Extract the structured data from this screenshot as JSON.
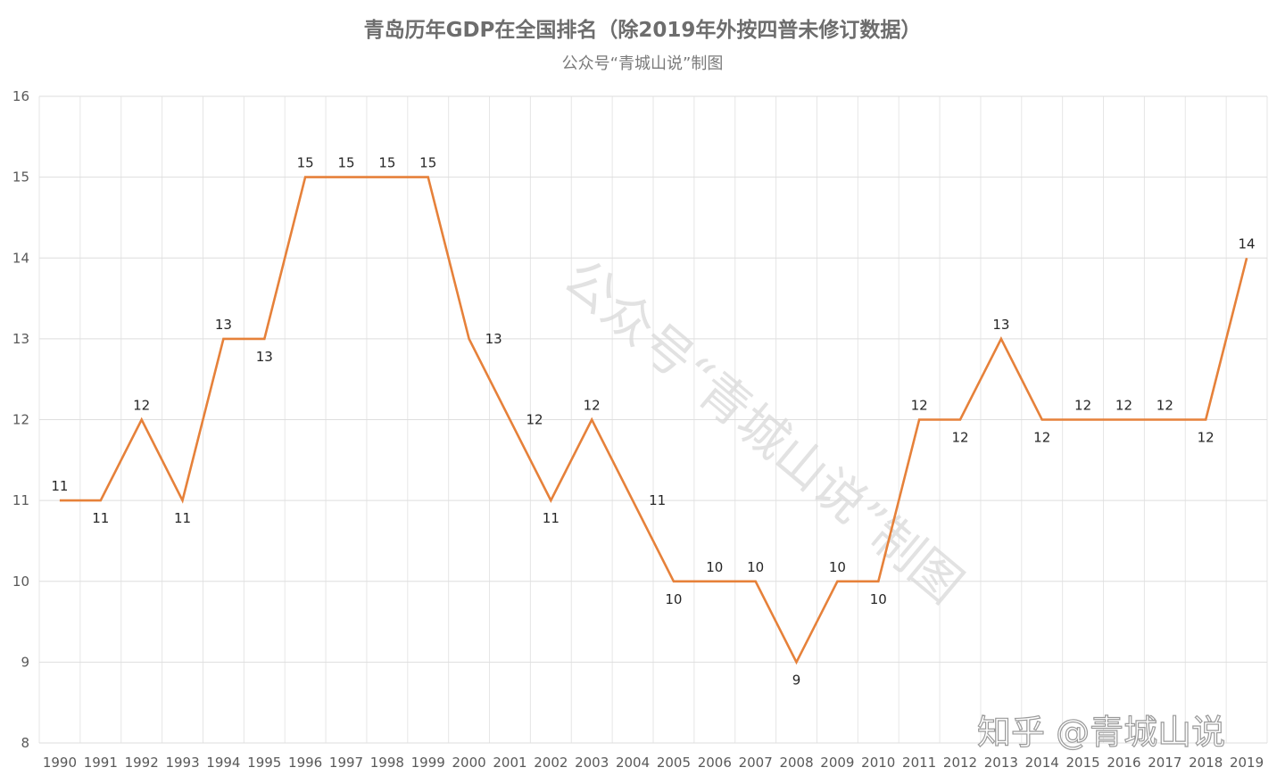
{
  "chart_data": {
    "type": "line",
    "title": "青岛历年GDP在全国排名（除2019年外按四普未修订数据）",
    "subtitle": "公众号“青城山说”制图",
    "categories": [
      "1990",
      "1991",
      "1992",
      "1993",
      "1994",
      "1995",
      "1996",
      "1997",
      "1998",
      "1999",
      "2000",
      "2001",
      "2002",
      "2003",
      "2004",
      "2005",
      "2006",
      "2007",
      "2008",
      "2009",
      "2010",
      "2011",
      "2012",
      "2013",
      "2014",
      "2015",
      "2016",
      "2017",
      "2018",
      "2019"
    ],
    "series": [
      {
        "values": [
          11,
          11,
          12,
          11,
          13,
          13,
          15,
          15,
          15,
          15,
          13,
          null,
          11,
          12,
          null,
          10,
          10,
          10,
          9,
          10,
          10,
          12,
          12,
          13,
          12,
          12,
          12,
          12,
          12,
          14
        ],
        "color": "#e6813a"
      }
    ],
    "data_labels": [
      {
        "x": "1990",
        "text": "11",
        "pos": "above"
      },
      {
        "x": "1991",
        "text": "11",
        "pos": "below"
      },
      {
        "x": "1992",
        "text": "12",
        "pos": "above"
      },
      {
        "x": "1993",
        "text": "11",
        "pos": "below"
      },
      {
        "x": "1994",
        "text": "13",
        "pos": "above"
      },
      {
        "x": "1995",
        "text": "13",
        "pos": "below"
      },
      {
        "x": "1996",
        "text": "15",
        "pos": "above"
      },
      {
        "x": "1997",
        "text": "15",
        "pos": "above"
      },
      {
        "x": "1998",
        "text": "15",
        "pos": "above"
      },
      {
        "x": "1999",
        "text": "15",
        "pos": "above"
      },
      {
        "x": "2000",
        "text": "13",
        "pos": "right"
      },
      {
        "x": "2001",
        "text": "12",
        "pos": "right"
      },
      {
        "x": "2002",
        "text": "11",
        "pos": "below"
      },
      {
        "x": "2003",
        "text": "12",
        "pos": "above"
      },
      {
        "x": "2004",
        "text": "11",
        "pos": "right"
      },
      {
        "x": "2005",
        "text": "10",
        "pos": "below"
      },
      {
        "x": "2006",
        "text": "10",
        "pos": "above"
      },
      {
        "x": "2007",
        "text": "10",
        "pos": "above"
      },
      {
        "x": "2008",
        "text": "9",
        "pos": "below"
      },
      {
        "x": "2009",
        "text": "10",
        "pos": "above"
      },
      {
        "x": "2010",
        "text": "10",
        "pos": "below"
      },
      {
        "x": "2011",
        "text": "12",
        "pos": "above"
      },
      {
        "x": "2012",
        "text": "12",
        "pos": "below"
      },
      {
        "x": "2013",
        "text": "13",
        "pos": "above"
      },
      {
        "x": "2014",
        "text": "12",
        "pos": "below"
      },
      {
        "x": "2015",
        "text": "12",
        "pos": "above"
      },
      {
        "x": "2016",
        "text": "12",
        "pos": "above"
      },
      {
        "x": "2017",
        "text": "12",
        "pos": "above"
      },
      {
        "x": "2018",
        "text": "12",
        "pos": "below"
      },
      {
        "x": "2019",
        "text": "14",
        "pos": "above"
      }
    ],
    "ylim": [
      8,
      16
    ],
    "yticks": [
      8,
      9,
      10,
      11,
      12,
      13,
      14,
      15,
      16
    ],
    "xlabel": "",
    "ylabel": "",
    "grid": true,
    "legend": "none"
  },
  "watermarks": {
    "diagonal": "公众号“青城山说”制图",
    "corner": "知乎 @青城山说"
  }
}
